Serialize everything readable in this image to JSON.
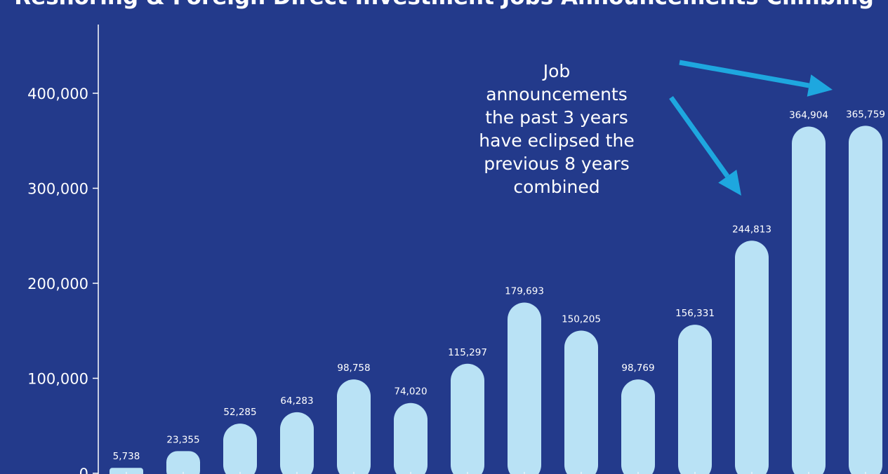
{
  "chart_data": {
    "type": "bar",
    "title": "Reshoring & Foreign Direct Investment Jobs Announcements Climbing",
    "values": [
      5738,
      23355,
      52285,
      64283,
      98758,
      74020,
      115297,
      179693,
      150205,
      98769,
      156331,
      244813,
      364904,
      365759
    ],
    "value_labels": [
      "5,738",
      "23,355",
      "52,285",
      "64,283",
      "98,758",
      "74,020",
      "115,297",
      "179,693",
      "150,205",
      "98,769",
      "156,331",
      "244,813",
      "364,904",
      "365,759"
    ],
    "yticks": [
      0,
      100000,
      200000,
      300000,
      400000
    ],
    "ytick_labels": [
      "0",
      "100,000",
      "200,000",
      "300,000",
      "400,000"
    ],
    "ylim": [
      0,
      400000
    ],
    "bar_color": "#b9e2f5",
    "background_color": "#233a8b",
    "arrow_color": "#1ea7df",
    "annotation_lines": [
      "Job",
      "announcements",
      "the past 3 years",
      "have eclipsed the",
      "previous 8 years",
      "combined"
    ]
  }
}
